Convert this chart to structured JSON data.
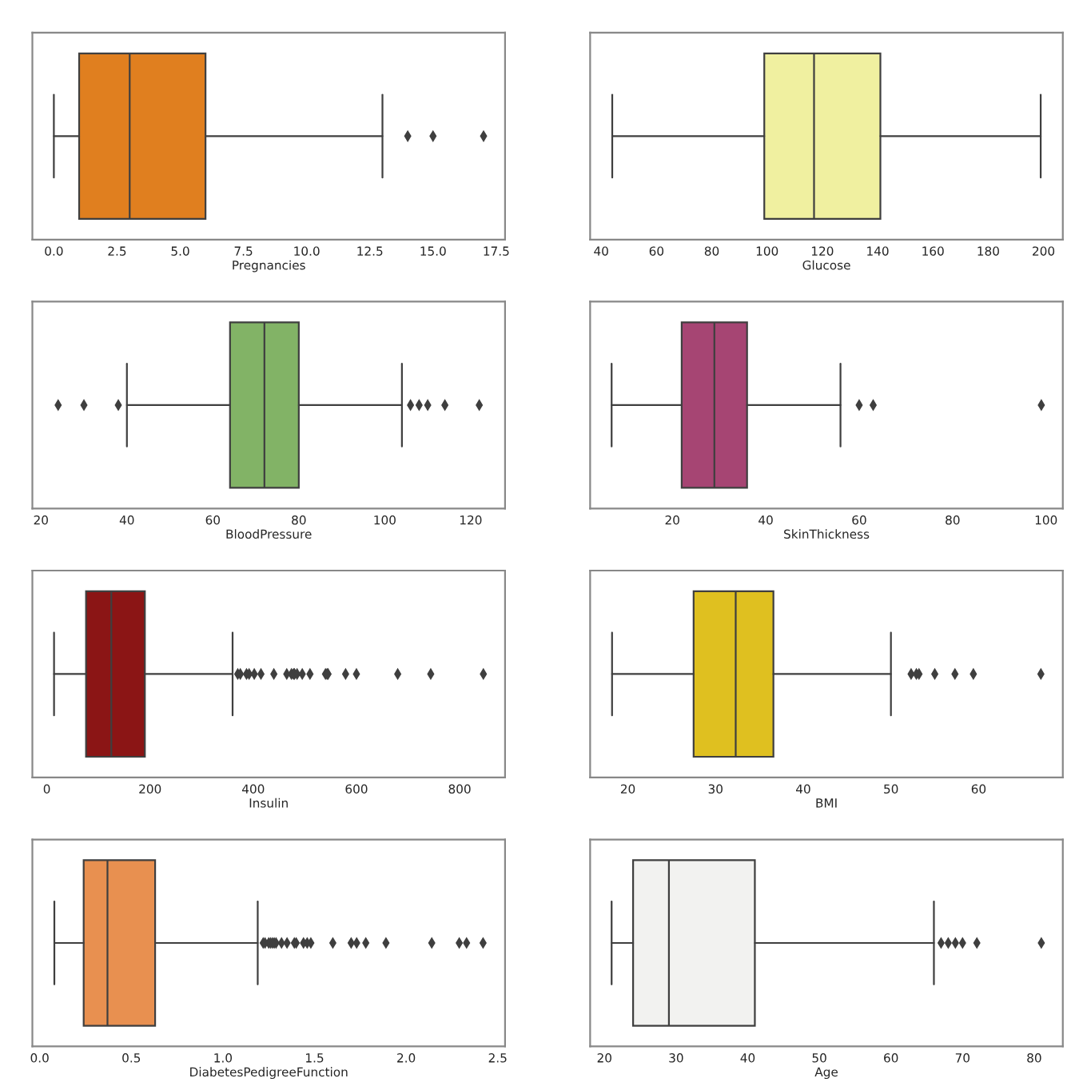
{
  "chart_data": [
    {
      "type": "box",
      "orientation": "horizontal",
      "xlabel": "Pregnancies",
      "categories": [
        null
      ],
      "tick_labels": "x",
      "xlim": [
        -0.85,
        17.85
      ],
      "xticks": [
        {
          "value": 0,
          "label": "0.0"
        },
        {
          "value": 2.5,
          "label": "2.5"
        },
        {
          "value": 5,
          "label": "5.0"
        },
        {
          "value": 7.5,
          "label": "7.5"
        },
        {
          "value": 10,
          "label": "10.0"
        },
        {
          "value": 12.5,
          "label": "12.5"
        },
        {
          "value": 15,
          "label": "15.0"
        },
        {
          "value": 17.5,
          "label": "17.5"
        }
      ],
      "series": [
        {
          "color": "#e07f1f",
          "boxes": [
            {
              "low": 0,
              "q1": 1,
              "median": 3,
              "q3": 6,
              "high": 13,
              "outliers": [
                14,
                15,
                17
              ]
            }
          ]
        }
      ]
    },
    {
      "type": "box",
      "orientation": "horizontal",
      "xlabel": "Glucose",
      "categories": [
        null
      ],
      "tick_labels": "x",
      "xlim": [
        36,
        207
      ],
      "xticks": [
        40,
        60,
        80,
        100,
        120,
        140,
        160,
        180,
        200
      ],
      "series": [
        {
          "color": "#f0f0a0",
          "boxes": [
            {
              "low": 44,
              "q1": 99,
              "median": 117,
              "q3": 141,
              "high": 199
            }
          ]
        }
      ]
    },
    {
      "type": "box",
      "orientation": "horizontal",
      "xlabel": "BloodPressure",
      "categories": [
        null
      ],
      "tick_labels": "x",
      "xlim": [
        18,
        128
      ],
      "xticks": [
        20,
        40,
        60,
        80,
        100,
        120
      ],
      "series": [
        {
          "color": "#82b366",
          "boxes": [
            {
              "low": 40,
              "q1": 64,
              "median": 72,
              "q3": 80,
              "high": 104,
              "outliers": [
                24,
                30,
                38,
                106,
                108,
                110,
                114,
                122
              ]
            }
          ]
        }
      ]
    },
    {
      "type": "box",
      "orientation": "horizontal",
      "xlabel": "SkinThickness",
      "categories": [
        null
      ],
      "tick_labels": "x",
      "xlim": [
        2.4,
        103.6
      ],
      "xticks": [
        20,
        40,
        60,
        80,
        100
      ],
      "series": [
        {
          "color": "#a64573",
          "boxes": [
            {
              "low": 7,
              "q1": 22,
              "median": 29,
              "q3": 36,
              "high": 56,
              "outliers": [
                60,
                63,
                99
              ]
            }
          ]
        }
      ]
    },
    {
      "type": "box",
      "orientation": "horizontal",
      "xlabel": "Insulin",
      "categories": [
        null
      ],
      "tick_labels": "x",
      "xlim": [
        -28,
        888
      ],
      "xticks": [
        0,
        200,
        400,
        600,
        800
      ],
      "series": [
        {
          "color": "#8b1515",
          "boxes": [
            {
              "low": 14,
              "q1": 76,
              "median": 125,
              "q3": 190,
              "high": 360,
              "outliers": [
                370,
                375,
                387,
                392,
                402,
                415,
                440,
                465,
                474,
                478,
                480,
                485,
                495,
                510,
                540,
                543,
                545,
                579,
                600,
                680,
                744,
                846
              ]
            }
          ]
        }
      ]
    },
    {
      "type": "box",
      "orientation": "horizontal",
      "xlabel": "BMI",
      "categories": [
        null
      ],
      "tick_labels": "x",
      "xlim": [
        15.7,
        69.6
      ],
      "xticks": [
        20,
        30,
        40,
        50,
        60
      ],
      "series": [
        {
          "color": "#dfc020",
          "boxes": [
            {
              "low": 18.2,
              "q1": 27.5,
              "median": 32.3,
              "q3": 36.6,
              "high": 50,
              "outliers": [
                52.3,
                52.9,
                53.2,
                55,
                57.3,
                59.4,
                67.1
              ]
            }
          ]
        }
      ]
    },
    {
      "type": "box",
      "orientation": "horizontal",
      "xlabel": "DiabetesPedigreeFunction",
      "categories": [
        null
      ],
      "tick_labels": "x",
      "xlim": [
        -0.04,
        2.54
      ],
      "xticks": [
        {
          "value": 0,
          "label": "0.0"
        },
        {
          "value": 0.5,
          "label": "0.5"
        },
        {
          "value": 1,
          "label": "1.0"
        },
        {
          "value": 1.5,
          "label": "1.5"
        },
        {
          "value": 2,
          "label": "2.0"
        },
        {
          "value": 2.5,
          "label": "2.5"
        }
      ],
      "series": [
        {
          "color": "#e89050",
          "boxes": [
            {
              "low": 0.08,
              "q1": 0.24,
              "median": 0.37,
              "q3": 0.63,
              "high": 1.19,
              "outliers": [
                1.22,
                1.23,
                1.25,
                1.26,
                1.27,
                1.28,
                1.29,
                1.32,
                1.35,
                1.39,
                1.4,
                1.44,
                1.46,
                1.48,
                1.6,
                1.7,
                1.73,
                1.78,
                1.89,
                2.14,
                2.29,
                2.33,
                2.42
              ]
            }
          ]
        }
      ]
    },
    {
      "type": "box",
      "orientation": "horizontal",
      "xlabel": "Age",
      "categories": [
        null
      ],
      "tick_labels": "x",
      "xlim": [
        18,
        84
      ],
      "xticks": [
        20,
        30,
        40,
        50,
        60,
        70,
        80
      ],
      "series": [
        {
          "color": "#f2f2f0",
          "boxes": [
            {
              "low": 21,
              "q1": 24,
              "median": 29,
              "q3": 41,
              "high": 66,
              "outliers": [
                67,
                68,
                69,
                70,
                72,
                81
              ]
            }
          ]
        }
      ]
    }
  ]
}
